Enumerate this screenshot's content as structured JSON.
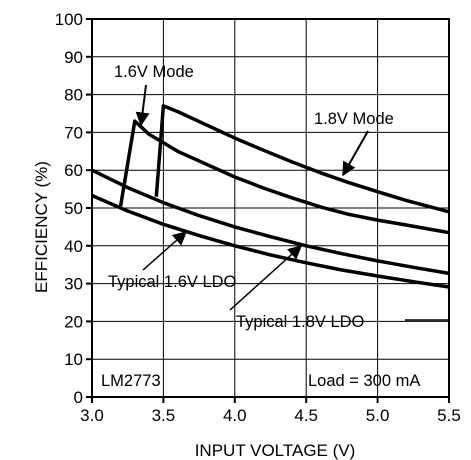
{
  "chart_data": {
    "type": "line",
    "title": "",
    "xlabel": "INPUT VOLTAGE (V)",
    "ylabel": "EFFICIENCY (%)",
    "xlim": [
      3.0,
      5.5
    ],
    "ylim": [
      0,
      100
    ],
    "x_ticks": [
      3.0,
      3.5,
      4.0,
      4.5,
      5.0,
      5.5
    ],
    "x_tick_labels": [
      "3.0",
      "3.5",
      "4.0",
      "4.5",
      "5.0",
      "5.5"
    ],
    "y_ticks": [
      0,
      10,
      20,
      30,
      40,
      50,
      60,
      70,
      80,
      90,
      100
    ],
    "y_tick_labels": [
      "0",
      "10",
      "20",
      "30",
      "40",
      "50",
      "60",
      "70",
      "80",
      "90",
      "100"
    ],
    "grid": true,
    "series": [
      {
        "name": "1.6V Mode",
        "x": [
          3.2,
          3.3,
          3.4,
          3.6,
          3.8,
          4.0,
          4.2,
          4.4,
          4.6,
          4.8,
          5.0,
          5.2,
          5.5
        ],
        "y": [
          50.5,
          73.0,
          69.5,
          65.0,
          61.6,
          58.2,
          55.3,
          52.7,
          50.3,
          48.3,
          46.8,
          45.5,
          43.5
        ]
      },
      {
        "name": "1.8V Mode",
        "x": [
          3.45,
          3.5,
          3.6,
          3.8,
          4.0,
          4.2,
          4.4,
          4.6,
          4.8,
          5.0,
          5.2,
          5.5
        ],
        "y": [
          53.0,
          77.0,
          75.5,
          72.0,
          68.5,
          65.3,
          62.2,
          59.3,
          56.7,
          54.3,
          52.0,
          49.0
        ]
      },
      {
        "name": "Typical 1.6V LDO",
        "x": [
          3.0,
          3.25,
          3.5,
          3.75,
          4.0,
          4.25,
          4.5,
          4.75,
          5.0,
          5.25,
          5.5
        ],
        "y": [
          53.3,
          49.2,
          45.7,
          42.7,
          40.0,
          37.6,
          35.5,
          33.6,
          32.0,
          30.5,
          29.1
        ]
      },
      {
        "name": "Typical 1.8V LDO",
        "x": [
          3.0,
          3.25,
          3.5,
          3.75,
          4.0,
          4.25,
          4.5,
          4.75,
          5.0,
          5.25,
          5.5
        ],
        "y": [
          60.0,
          55.4,
          51.4,
          48.0,
          45.0,
          42.4,
          40.0,
          37.9,
          36.0,
          34.3,
          32.7
        ]
      }
    ],
    "annotations": {
      "mode16": "1.6V Mode",
      "mode18": "1.8V Mode",
      "ldo16": "Typical 1.6V LDO",
      "ldo18": "Typical 1.8V LDO",
      "part": "LM2773",
      "load": "Load = 300 mA"
    }
  }
}
